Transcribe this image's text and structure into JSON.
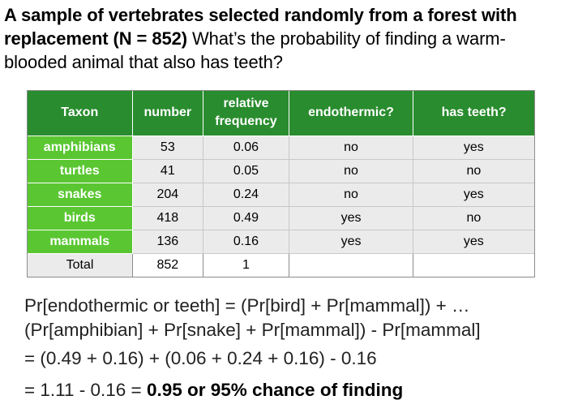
{
  "heading": {
    "bold": "A sample of vertebrates selected randomly from a forest with replacement (N = 852)",
    "question": " What’s the probability of finding a warm-blooded animal that also has teeth?"
  },
  "table": {
    "headers": {
      "taxon": "Taxon",
      "number": "number",
      "rel_freq": "relative frequency",
      "endothermic": "endothermic?",
      "teeth": "has teeth?"
    },
    "rows": [
      {
        "taxon": "amphibians",
        "number": "53",
        "freq": "0.06",
        "endothermic": "no",
        "teeth": "yes"
      },
      {
        "taxon": "turtles",
        "number": "41",
        "freq": "0.05",
        "endothermic": "no",
        "teeth": "no"
      },
      {
        "taxon": "snakes",
        "number": "204",
        "freq": "0.24",
        "endothermic": "no",
        "teeth": "yes"
      },
      {
        "taxon": "birds",
        "number": "418",
        "freq": "0.49",
        "endothermic": "yes",
        "teeth": "no"
      },
      {
        "taxon": "mammals",
        "number": "136",
        "freq": "0.16",
        "endothermic": "yes",
        "teeth": "yes"
      }
    ],
    "total": {
      "label": "Total",
      "number": "852",
      "freq": "1",
      "endothermic": "",
      "teeth": ""
    }
  },
  "calc": {
    "line1": "Pr[endothermic or teeth] = (Pr[bird] + Pr[mammal]) + …",
    "line2": "(Pr[amphibian] + Pr[snake] + Pr[mammal]) - Pr[mammal]",
    "line3": "= (0.49 + 0.16) + (0.06 + 0.24 + 0.16) - 0.16",
    "line4_plain": "= 1.11 - 0.16 = ",
    "line4_bold": "0.95 or 95% chance of finding"
  }
}
